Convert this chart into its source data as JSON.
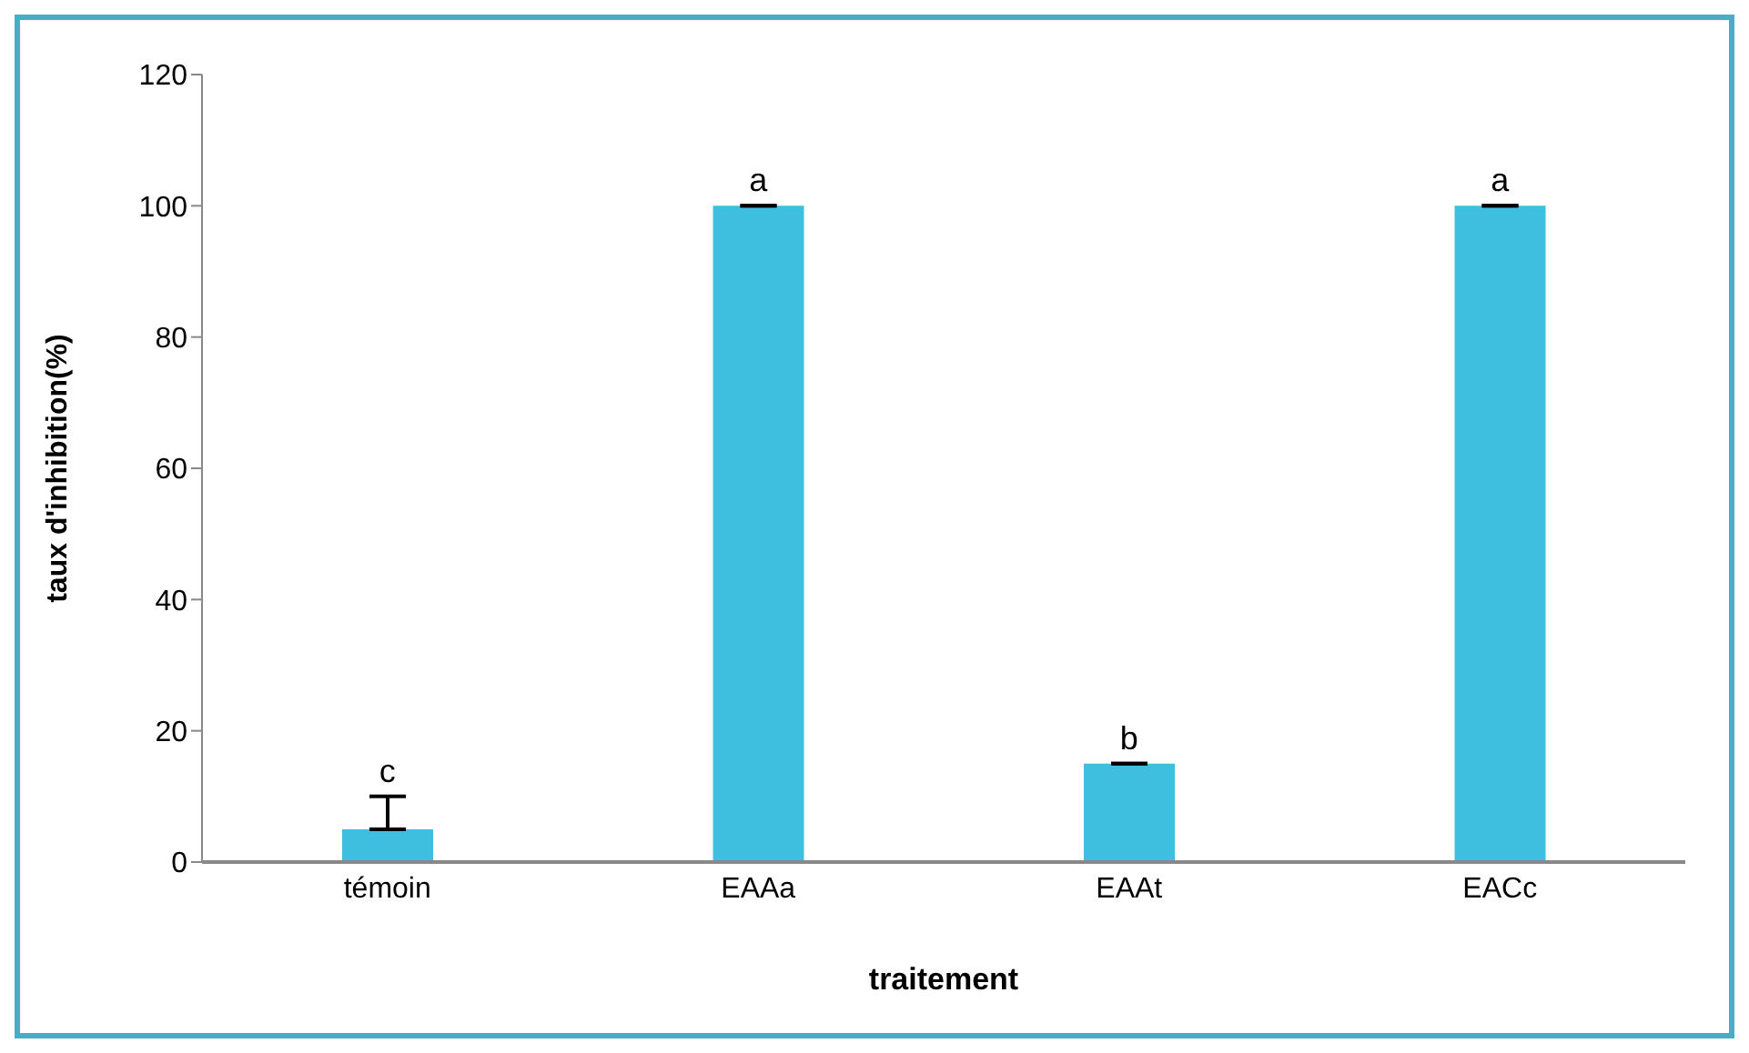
{
  "chart_data": {
    "type": "bar",
    "xlabel": "traitement",
    "ylabel": "taux d'inhibition(%)",
    "categories": [
      "témoin",
      "EAAa",
      "EAAt",
      "EACc"
    ],
    "values": [
      5,
      100,
      15,
      100
    ],
    "errors": [
      [
        5,
        10
      ],
      0,
      0,
      0
    ],
    "color": "#3fbfdf",
    "ylim": [
      0,
      120
    ],
    "yticks": [
      0,
      20,
      40,
      60,
      80,
      100,
      120
    ],
    "grid": false,
    "legend": false,
    "annotations": [
      {
        "text": "c",
        "x": "témoin",
        "y": 10
      },
      {
        "text": "a",
        "x": "EAAa",
        "y": 100
      },
      {
        "text": "b",
        "x": "EAAt",
        "y": 15
      },
      {
        "text": "a",
        "x": "EACc",
        "y": 100
      }
    ]
  }
}
